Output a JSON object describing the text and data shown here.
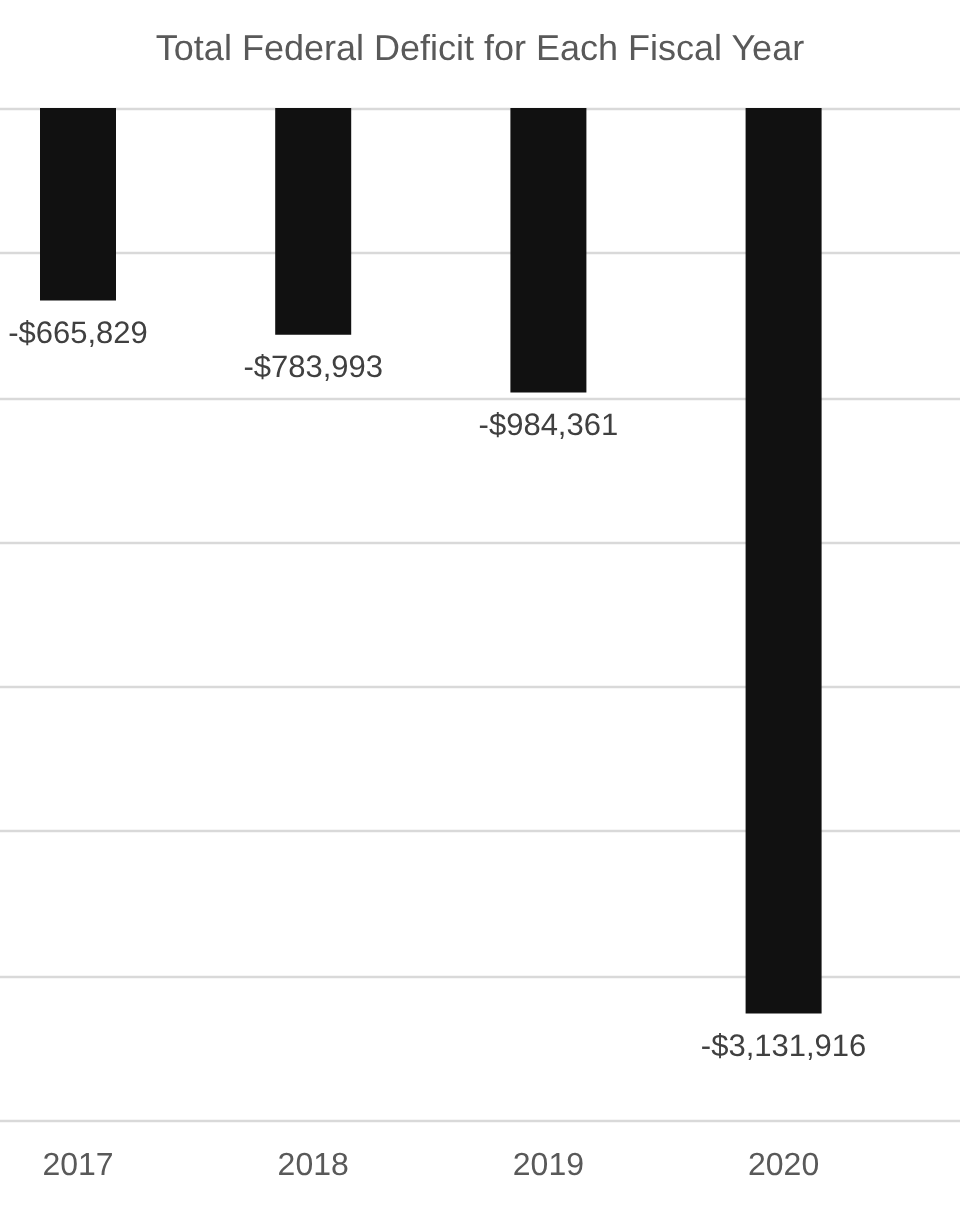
{
  "chart_data": {
    "type": "bar",
    "title": "Total Federal Deficit for Each Fiscal Year",
    "categories": [
      "2017",
      "2018",
      "2019",
      "2020"
    ],
    "values": [
      -665829,
      -783993,
      -984361,
      -3131916
    ],
    "value_labels": [
      "-$665,829",
      "-$783,993",
      "-$984,361",
      "-$3,131,916"
    ],
    "color": "#111111",
    "ylim": [
      -3500000,
      0
    ],
    "yticks": [
      {
        "value": -3500000,
        "label": null
      },
      {
        "value": -3000000,
        "label": null
      },
      {
        "value": -2500000,
        "label": null
      },
      {
        "value": -2000000,
        "label": null
      },
      {
        "value": -1500000,
        "label": null
      },
      {
        "value": -1000000,
        "label": null
      },
      {
        "value": -500000,
        "label": null
      },
      {
        "value": 0,
        "label": null
      }
    ],
    "grid": "y",
    "tick_labels": "x"
  }
}
